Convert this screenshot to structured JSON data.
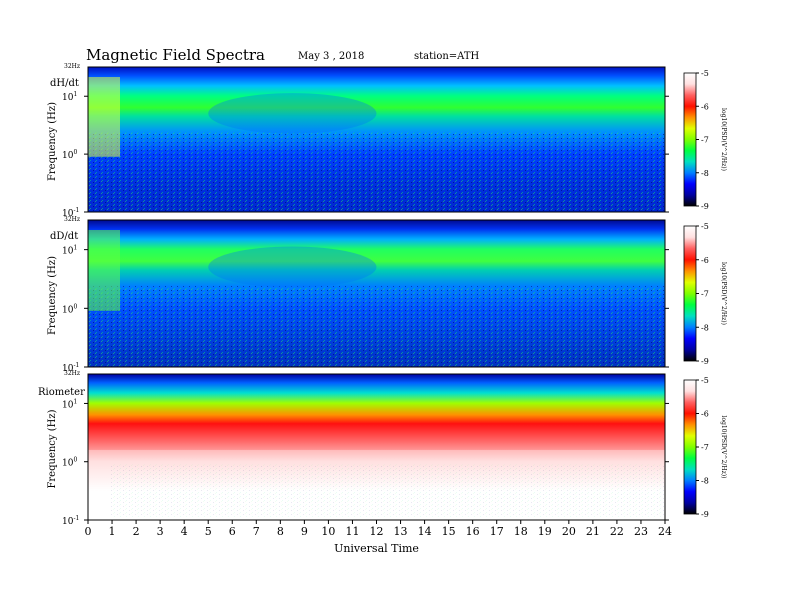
{
  "header": {
    "title": "Magnetic  Field  Spectra",
    "date": "May 3  , 2018",
    "station": "station=ATH"
  },
  "chart_data": [
    {
      "type": "heatmap",
      "panel_label": "dH/dt",
      "ylabel": "Frequency  (Hz)",
      "top_label": "32Hz",
      "y_ticks": [
        {
          "base": "10",
          "exp": "1"
        },
        {
          "base": "10",
          "exp": "0"
        },
        {
          "base": "10",
          "exp": "-1"
        }
      ],
      "yscale": "log",
      "ylim": [
        0.1,
        32
      ],
      "colorbar": {
        "label": "log10(PSD(V^2/Hz))",
        "ticks": [
          "-5",
          "-6",
          "-7",
          "-8",
          "-9"
        ],
        "range": [
          -9,
          -5
        ]
      },
      "features": [
        "broadband green-yellow emission 1-10 Hz",
        "enhanced activity 0-1 UT",
        "dark band ~1.1 Hz"
      ]
    },
    {
      "type": "heatmap",
      "panel_label": "dD/dt",
      "ylabel": "Frequency  (Hz)",
      "top_label": "32Hz",
      "y_ticks": [
        {
          "base": "10",
          "exp": "1"
        },
        {
          "base": "10",
          "exp": "0"
        },
        {
          "base": "10",
          "exp": "-1"
        }
      ],
      "yscale": "log",
      "ylim": [
        0.1,
        32
      ],
      "colorbar": {
        "label": "log10(PSD(V^2/Hz))",
        "ticks": [
          "-5",
          "-6",
          "-7",
          "-8",
          "-9"
        ],
        "range": [
          -9,
          -5
        ]
      },
      "features": [
        "green emission 1-10 Hz",
        "Schumann-like arcs 5-12 UT"
      ]
    },
    {
      "type": "heatmap",
      "panel_label": "Riometer",
      "ylabel": "Frequency  (Hz)",
      "top_label": "32Hz",
      "y_ticks": [
        {
          "base": "10",
          "exp": "1"
        },
        {
          "base": "10",
          "exp": "0"
        },
        {
          "base": "10",
          "exp": "-1"
        }
      ],
      "yscale": "log",
      "ylim": [
        0.1,
        32
      ],
      "colorbar": {
        "label": "log10(PSD(V^2/Hz))",
        "ticks": [
          "-5",
          "-6",
          "-7",
          "-8",
          "-9"
        ],
        "range": [
          -9,
          -5
        ]
      },
      "features": [
        "saturated red/white below ~5 Hz",
        "blue-green band near top"
      ]
    }
  ],
  "x_axis": {
    "label": "Universal Time",
    "ticks": [
      "0",
      "1",
      "2",
      "3",
      "4",
      "5",
      "6",
      "7",
      "8",
      "9",
      "10",
      "11",
      "12",
      "13",
      "14",
      "15",
      "16",
      "17",
      "18",
      "19",
      "20",
      "21",
      "22",
      "23",
      "24"
    ],
    "range": [
      0,
      24
    ]
  },
  "colors": {
    "colormap": [
      "#000080",
      "#0000ff",
      "#00a0ff",
      "#00ffa0",
      "#00ff00",
      "#a0ff00",
      "#ffff00",
      "#ff8000",
      "#ff0000",
      "#ff8080",
      "#ffffff"
    ]
  }
}
